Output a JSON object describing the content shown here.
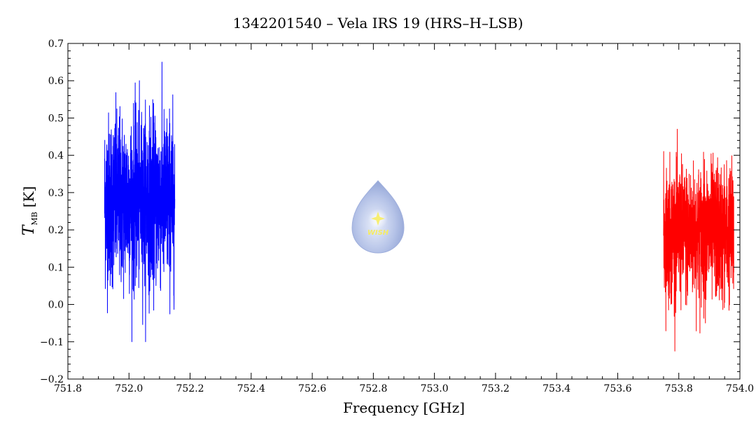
{
  "chart_data": {
    "type": "line",
    "title": "1342201540 – Vela IRS 19 (HRS–H–LSB)",
    "xlabel": "Frequency [GHz]",
    "ylabel_main": "T",
    "ylabel_sub": "MB",
    "ylabel_unit": "[K]",
    "xlim": [
      751.8,
      754.0
    ],
    "ylim": [
      -0.2,
      0.7
    ],
    "x_ticks": [
      "751.8",
      "752.0",
      "752.2",
      "752.4",
      "752.6",
      "752.8",
      "753.0",
      "753.2",
      "753.4",
      "753.6",
      "753.8",
      "754.0"
    ],
    "y_ticks": [
      "−0.2",
      "−0.1",
      "0.0",
      "0.1",
      "0.2",
      "0.3",
      "0.4",
      "0.5",
      "0.6",
      "0.7"
    ],
    "grid": false,
    "series": [
      {
        "color": "#0000ff",
        "x_range": [
          751.92,
          752.15
        ],
        "mean": 0.28,
        "min": -0.1,
        "max": 0.65
      },
      {
        "color": "#ff0000",
        "x_range": [
          753.75,
          753.98
        ],
        "mean": 0.19,
        "min": -0.125,
        "max": 0.47
      }
    ]
  },
  "logo": {
    "text": "WISH",
    "icon": "water-drop-star-logo"
  }
}
